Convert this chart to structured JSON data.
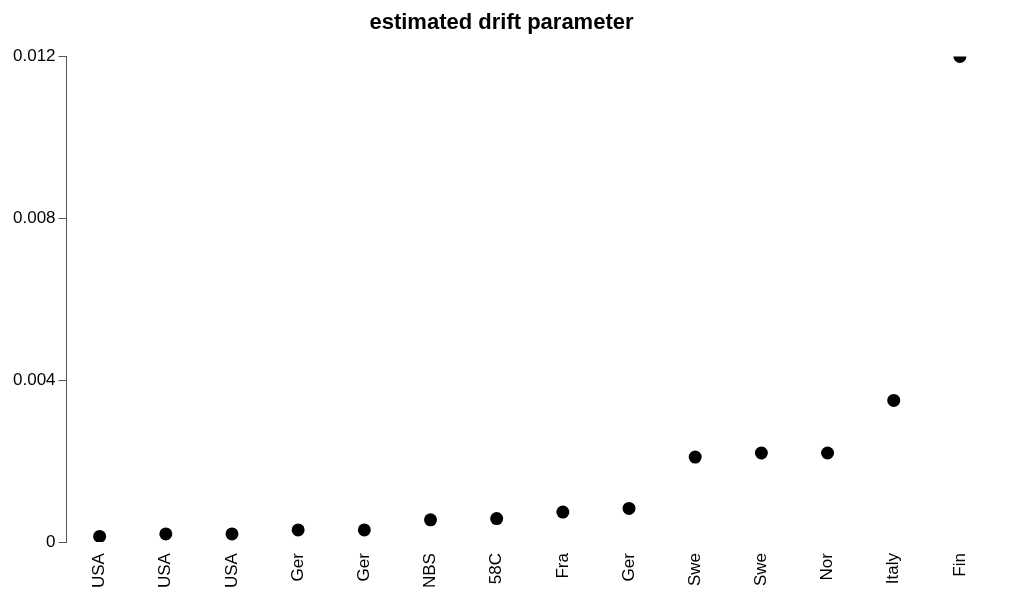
{
  "chart_data": {
    "type": "scatter",
    "title": "estimated drift parameter",
    "categories": [
      "USA",
      "USA",
      "USA",
      "Ger",
      "Ger",
      "NBS",
      "58C",
      "Fra",
      "Ger",
      "Swe",
      "Swe",
      "Nor",
      "Italy",
      "Fin"
    ],
    "values": [
      0.00014,
      0.0002,
      0.0002,
      0.0003,
      0.0003,
      0.00055,
      0.00058,
      0.00074,
      0.00083,
      0.0021,
      0.0022,
      0.0022,
      0.0035,
      0.012
    ],
    "color": "#000000",
    "marker": "circle",
    "ylim": [
      0,
      0.012
    ],
    "yticks": [
      0,
      0.004,
      0.008,
      0.012
    ],
    "grid": false
  }
}
